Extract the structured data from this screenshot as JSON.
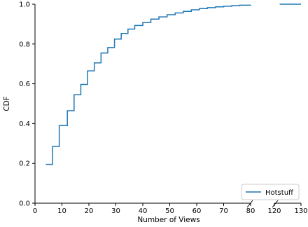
{
  "chart_data": {
    "type": "line",
    "xlabel": "Number of Views",
    "ylabel": "CDF",
    "ylim": [
      0,
      1.0
    ],
    "xlim": [
      0,
      130
    ],
    "axis_break": [
      80,
      120
    ],
    "x_ticks": [
      0,
      10,
      20,
      30,
      40,
      50,
      60,
      70,
      80,
      120,
      130
    ],
    "x_tick_labels": [
      "0",
      "10",
      "20",
      "30",
      "40",
      "50",
      "60",
      "70",
      "80",
      "120",
      "130"
    ],
    "y_ticks": [
      0.0,
      0.2,
      0.4,
      0.6,
      0.8,
      1.0
    ],
    "y_tick_labels": [
      "0.0",
      "0.2",
      "0.4",
      "0.6",
      "0.8",
      "1.0"
    ],
    "grid": false,
    "legend_position": "bottom-right",
    "series": [
      {
        "name": "Hotstuff",
        "color": "#1f77b4",
        "step": true,
        "x": [
          4,
          6.5,
          9,
          12,
          14.5,
          17,
          19.5,
          22,
          24.5,
          27,
          29.5,
          32,
          34.5,
          37,
          40,
          43,
          46,
          49,
          52,
          55,
          58,
          61,
          64,
          67,
          70,
          73,
          76,
          80
        ],
        "y": [
          0.195,
          0.285,
          0.39,
          0.465,
          0.545,
          0.597,
          0.665,
          0.705,
          0.755,
          0.782,
          0.825,
          0.853,
          0.875,
          0.893,
          0.908,
          0.925,
          0.936,
          0.947,
          0.956,
          0.964,
          0.972,
          0.978,
          0.983,
          0.987,
          0.99,
          0.993,
          0.995,
          0.998
        ],
        "tail_x": [
          122,
          130
        ],
        "tail_y": 1.0
      }
    ]
  }
}
